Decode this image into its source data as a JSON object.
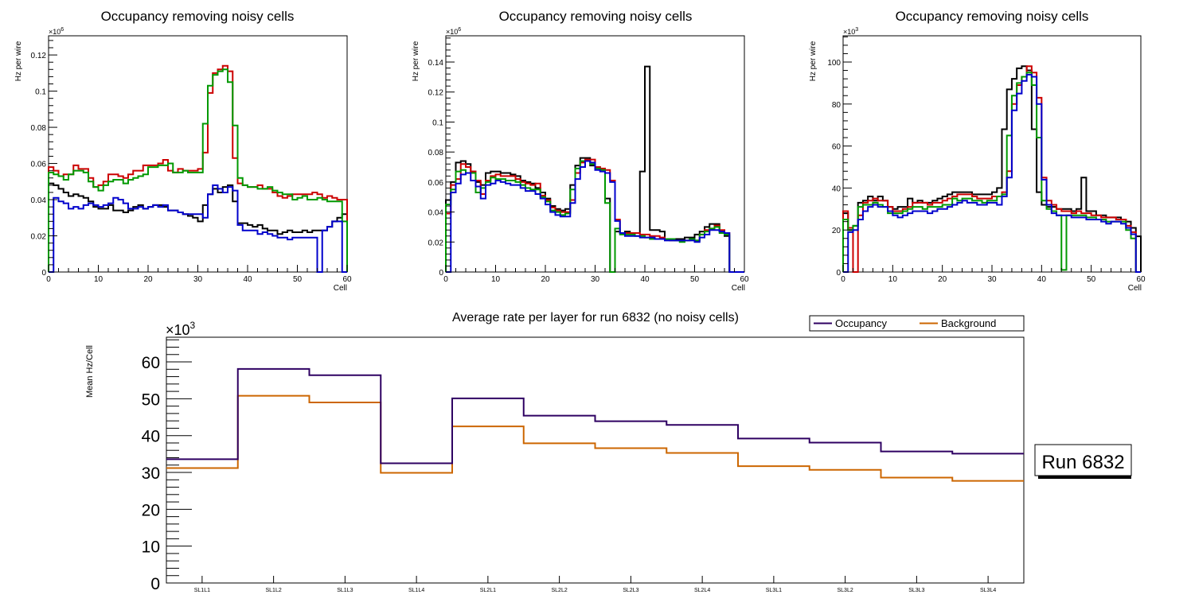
{
  "colors": {
    "black": "#000000",
    "red": "#cc0000",
    "green": "#009900",
    "blue": "#0000cc",
    "occupancy": "#2e0062",
    "background": "#cc6600"
  },
  "chart_data": [
    {
      "type": "line",
      "style": "step-histogram",
      "title": "Occupancy removing noisy cells",
      "xlabel": "Cell",
      "ylabel": "Hz per wire",
      "multiplier_label": "×10",
      "multiplier_exp": "6",
      "xlim": [
        0,
        60
      ],
      "ylim": [
        0,
        0.1306
      ],
      "xticks": [
        "0",
        "10",
        "20",
        "30",
        "40",
        "50",
        "60"
      ],
      "yticks": [
        {
          "v": 0,
          "l": "0"
        },
        {
          "v": 0.02,
          "l": "0.02"
        },
        {
          "v": 0.04,
          "l": "0.04"
        },
        {
          "v": 0.06,
          "l": "0.06"
        },
        {
          "v": 0.08,
          "l": "0.08"
        },
        {
          "v": 0.1,
          "l": "0.1"
        },
        {
          "v": 0.12,
          "l": "0.12"
        }
      ],
      "series": [
        {
          "name": "black",
          "color": "#000000",
          "values": [
            0.049,
            0.048,
            0.046,
            0.044,
            0.042,
            0.043,
            0.042,
            0.041,
            0.039,
            0.036,
            0.035,
            0.035,
            0.037,
            0.034,
            0.034,
            0.033,
            0.034,
            0.036,
            0.037,
            0.035,
            0.036,
            0.037,
            0.037,
            0.036,
            0.034,
            0.034,
            0.033,
            0.032,
            0.031,
            0.03,
            0.028,
            0.037,
            0.043,
            0.046,
            0.044,
            0.047,
            0.048,
            0.039,
            0.027,
            0.027,
            0.026,
            0.025,
            0.026,
            0.024,
            0.023,
            0.023,
            0.021,
            0.022,
            0.023,
            0.022,
            0.022,
            0.023,
            0.022,
            0.023,
            0.023,
            0.023,
            0.025,
            0.028,
            0.03,
            0.032
          ]
        },
        {
          "name": "red",
          "color": "#cc0000",
          "values": [
            0.058,
            0.056,
            0.053,
            0.054,
            0.054,
            0.059,
            0.057,
            0.057,
            0.052,
            0.047,
            0.048,
            0.05,
            0.054,
            0.054,
            0.053,
            0.052,
            0.054,
            0.056,
            0.056,
            0.059,
            0.059,
            0.059,
            0.06,
            0.062,
            0.056,
            0.055,
            0.057,
            0.056,
            0.056,
            0.056,
            0.057,
            0.066,
            0.099,
            0.11,
            0.112,
            0.114,
            0.111,
            0.063,
            0.049,
            0.048,
            0.047,
            0.047,
            0.048,
            0.046,
            0.046,
            0.044,
            0.042,
            0.041,
            0.042,
            0.043,
            0.043,
            0.043,
            0.043,
            0.044,
            0.043,
            0.041,
            0.042,
            0.041,
            0.04,
            0.04
          ]
        },
        {
          "name": "green",
          "color": "#009900",
          "values": [
            0.055,
            0.054,
            0.053,
            0.051,
            0.054,
            0.056,
            0.056,
            0.055,
            0.05,
            0.047,
            0.045,
            0.048,
            0.05,
            0.051,
            0.051,
            0.049,
            0.051,
            0.052,
            0.053,
            0.054,
            0.058,
            0.058,
            0.059,
            0.059,
            0.06,
            0.055,
            0.055,
            0.056,
            0.055,
            0.055,
            0.055,
            0.082,
            0.103,
            0.109,
            0.111,
            0.112,
            0.105,
            0.081,
            0.052,
            0.048,
            0.047,
            0.047,
            0.046,
            0.046,
            0.047,
            0.045,
            0.044,
            0.043,
            0.043,
            0.04,
            0.041,
            0.042,
            0.04,
            0.04,
            0.041,
            0.04,
            0.039,
            0.039,
            0.039,
            0.028
          ]
        },
        {
          "name": "blue",
          "color": "#0000cc",
          "values": [
            0.0,
            0.041,
            0.039,
            0.038,
            0.035,
            0.036,
            0.035,
            0.037,
            0.038,
            0.037,
            0.036,
            0.037,
            0.038,
            0.041,
            0.04,
            0.038,
            0.035,
            0.035,
            0.036,
            0.035,
            0.036,
            0.037,
            0.036,
            0.037,
            0.034,
            0.034,
            0.033,
            0.032,
            0.032,
            0.032,
            0.032,
            0.03,
            0.043,
            0.048,
            0.046,
            0.044,
            0.047,
            0.045,
            0.026,
            0.023,
            0.023,
            0.023,
            0.021,
            0.022,
            0.021,
            0.02,
            0.019,
            0.019,
            0.018,
            0.019,
            0.019,
            0.019,
            0.019,
            0.019,
            0.0,
            0.023,
            0.025,
            0.028,
            0.028,
            0.0
          ]
        }
      ]
    },
    {
      "type": "line",
      "style": "step-histogram",
      "title": "Occupancy removing noisy cells",
      "xlabel": "Cell",
      "ylabel": "Hz per wire",
      "multiplier_label": "×10",
      "multiplier_exp": "6",
      "xlim": [
        0,
        60
      ],
      "ylim": [
        0,
        0.1575
      ],
      "xticks": [
        "0",
        "10",
        "20",
        "30",
        "40",
        "50",
        "60"
      ],
      "yticks": [
        {
          "v": 0,
          "l": "0"
        },
        {
          "v": 0.02,
          "l": "0.02"
        },
        {
          "v": 0.04,
          "l": "0.04"
        },
        {
          "v": 0.06,
          "l": "0.06"
        },
        {
          "v": 0.08,
          "l": "0.08"
        },
        {
          "v": 0.1,
          "l": "0.1"
        },
        {
          "v": 0.12,
          "l": "0.12"
        },
        {
          "v": 0.14,
          "l": "0.14"
        }
      ],
      "series": [
        {
          "name": "black",
          "color": "#000000",
          "values": [
            0.048,
            0.06,
            0.073,
            0.074,
            0.072,
            0.067,
            0.06,
            0.058,
            0.066,
            0.067,
            0.067,
            0.066,
            0.066,
            0.065,
            0.064,
            0.061,
            0.06,
            0.059,
            0.056,
            0.053,
            0.049,
            0.044,
            0.042,
            0.041,
            0.042,
            0.058,
            0.071,
            0.076,
            0.076,
            0.071,
            0.07,
            0.068,
            0.049,
            0.0,
            0.027,
            0.026,
            0.027,
            0.026,
            0.026,
            0.067,
            0.137,
            0.028,
            0.028,
            0.027,
            0.022,
            0.022,
            0.022,
            0.022,
            0.023,
            0.023,
            0.025,
            0.027,
            0.03,
            0.032,
            0.032,
            0.027,
            0.024,
            0.0,
            0.0,
            0.0
          ]
        },
        {
          "name": "red",
          "color": "#cc0000",
          "values": [
            0.039,
            0.058,
            0.062,
            0.072,
            0.07,
            0.067,
            0.061,
            0.052,
            0.061,
            0.064,
            0.065,
            0.064,
            0.064,
            0.064,
            0.062,
            0.06,
            0.059,
            0.058,
            0.059,
            0.051,
            0.048,
            0.043,
            0.041,
            0.04,
            0.04,
            0.048,
            0.066,
            0.073,
            0.075,
            0.075,
            0.07,
            0.069,
            0.068,
            0.061,
            0.035,
            0.026,
            0.026,
            0.026,
            0.026,
            0.025,
            0.025,
            0.024,
            0.024,
            0.023,
            0.022,
            0.021,
            0.021,
            0.021,
            0.021,
            0.022,
            0.021,
            0.025,
            0.028,
            0.029,
            0.031,
            0.028,
            0.026,
            0.0,
            0.0,
            0.0
          ]
        },
        {
          "name": "green",
          "color": "#009900",
          "values": [
            0.045,
            0.055,
            0.067,
            0.068,
            0.066,
            0.066,
            0.053,
            0.056,
            0.06,
            0.063,
            0.062,
            0.062,
            0.061,
            0.061,
            0.06,
            0.058,
            0.056,
            0.055,
            0.055,
            0.05,
            0.047,
            0.041,
            0.04,
            0.038,
            0.039,
            0.055,
            0.069,
            0.074,
            0.074,
            0.072,
            0.069,
            0.068,
            0.046,
            0.0,
            0.029,
            0.025,
            0.025,
            0.025,
            0.024,
            0.024,
            0.023,
            0.022,
            0.022,
            0.022,
            0.022,
            0.022,
            0.021,
            0.02,
            0.021,
            0.022,
            0.021,
            0.025,
            0.027,
            0.029,
            0.03,
            0.026,
            0.025,
            0.0,
            0.0,
            0.0
          ]
        },
        {
          "name": "blue",
          "color": "#0000cc",
          "values": [
            0.0,
            0.053,
            0.059,
            0.065,
            0.066,
            0.061,
            0.057,
            0.049,
            0.058,
            0.059,
            0.061,
            0.06,
            0.059,
            0.058,
            0.058,
            0.056,
            0.054,
            0.054,
            0.052,
            0.049,
            0.045,
            0.04,
            0.038,
            0.037,
            0.037,
            0.046,
            0.062,
            0.07,
            0.074,
            0.073,
            0.068,
            0.067,
            0.066,
            0.06,
            0.034,
            0.026,
            0.024,
            0.024,
            0.024,
            0.023,
            0.023,
            0.023,
            0.022,
            0.022,
            0.021,
            0.021,
            0.021,
            0.021,
            0.021,
            0.021,
            0.02,
            0.023,
            0.025,
            0.028,
            0.028,
            0.027,
            0.026,
            0.0,
            0.0,
            0.0
          ]
        }
      ]
    },
    {
      "type": "line",
      "style": "step-histogram",
      "title": "Occupancy removing noisy cells",
      "xlabel": "Cell",
      "ylabel": "Hz per wire",
      "multiplier_label": "×10",
      "multiplier_exp": "3",
      "xlim": [
        0,
        60
      ],
      "ylim": [
        0,
        112.5
      ],
      "xticks": [
        "0",
        "10",
        "20",
        "30",
        "40",
        "50",
        "60"
      ],
      "yticks": [
        {
          "v": 0,
          "l": "0"
        },
        {
          "v": 20,
          "l": "20"
        },
        {
          "v": 40,
          "l": "40"
        },
        {
          "v": 60,
          "l": "60"
        },
        {
          "v": 80,
          "l": "80"
        },
        {
          "v": 100,
          "l": "100"
        }
      ],
      "series": [
        {
          "name": "black",
          "color": "#000000",
          "values": [
            28,
            20,
            22,
            33,
            34,
            36,
            34,
            36,
            34,
            31,
            30,
            31,
            31,
            35,
            33,
            34,
            33,
            33,
            34,
            35,
            36,
            37,
            38,
            38,
            38,
            38,
            37,
            37,
            37,
            37,
            38,
            40,
            68,
            87,
            92,
            97,
            98,
            96,
            68,
            38,
            32,
            31,
            31,
            30,
            30,
            30,
            29,
            30,
            45,
            29,
            29,
            27,
            27,
            26,
            26,
            26,
            25,
            24,
            21,
            17
          ]
        },
        {
          "name": "red",
          "color": "#cc0000",
          "values": [
            29,
            21,
            0,
            27,
            33,
            34,
            35,
            34,
            34,
            31,
            29,
            29,
            30,
            31,
            33,
            33,
            33,
            32,
            33,
            33,
            34,
            35,
            36,
            37,
            37,
            37,
            36,
            35,
            35,
            35,
            36,
            36,
            38,
            48,
            80,
            89,
            93,
            98,
            95,
            83,
            45,
            34,
            32,
            30,
            29,
            29,
            28,
            29,
            28,
            28,
            27,
            27,
            26,
            26,
            26,
            25,
            25,
            22,
            19,
            0
          ]
        },
        {
          "name": "green",
          "color": "#009900",
          "values": [
            25,
            20,
            22,
            31,
            32,
            32,
            33,
            32,
            31,
            28,
            28,
            28,
            29,
            30,
            31,
            31,
            30,
            31,
            31,
            31,
            32,
            32,
            35,
            34,
            35,
            35,
            34,
            34,
            33,
            34,
            34,
            36,
            37,
            65,
            84,
            90,
            93,
            95,
            89,
            64,
            34,
            30,
            29,
            27,
            1,
            27,
            27,
            27,
            27,
            26,
            26,
            25,
            25,
            24,
            24,
            24,
            24,
            20,
            16,
            0
          ]
        },
        {
          "name": "blue",
          "color": "#0000cc",
          "values": [
            0,
            19,
            20,
            25,
            29,
            31,
            32,
            31,
            31,
            29,
            27,
            26,
            27,
            28,
            29,
            29,
            29,
            28,
            29,
            30,
            30,
            31,
            32,
            33,
            34,
            33,
            33,
            32,
            32,
            33,
            33,
            32,
            36,
            45,
            77,
            85,
            91,
            94,
            93,
            80,
            44,
            32,
            28,
            27,
            27,
            27,
            26,
            26,
            26,
            25,
            25,
            25,
            24,
            23,
            24,
            24,
            23,
            21,
            18,
            0
          ]
        }
      ]
    },
    {
      "type": "line",
      "style": "step-histogram",
      "title": "Average rate per layer for run 6832 (no noisy cells)",
      "xlabel": "",
      "ylabel": "Mean Hz/Cell",
      "multiplier_label": "×10",
      "multiplier_exp": "3",
      "ylim": [
        0,
        66.7
      ],
      "yticks": [
        {
          "v": 0,
          "l": "0"
        },
        {
          "v": 10,
          "l": "10"
        },
        {
          "v": 20,
          "l": "20"
        },
        {
          "v": 30,
          "l": "30"
        },
        {
          "v": 40,
          "l": "40"
        },
        {
          "v": 50,
          "l": "50"
        },
        {
          "v": 60,
          "l": "60"
        }
      ],
      "categories": [
        "SL1L1",
        "SL1L2",
        "SL1L3",
        "SL1L4",
        "SL2L1",
        "SL2L2",
        "SL2L3",
        "SL2L4",
        "SL3L1",
        "SL3L2",
        "SL3L3",
        "SL3L4"
      ],
      "series": [
        {
          "name": "Occupancy",
          "color": "#2e0062",
          "values": [
            33.6,
            58.1,
            56.4,
            32.5,
            50.1,
            45.4,
            43.9,
            42.9,
            39.2,
            38.1,
            35.7,
            35.1
          ]
        },
        {
          "name": "Background",
          "color": "#cc6600",
          "values": [
            31.2,
            50.8,
            49.0,
            29.9,
            42.5,
            37.9,
            36.6,
            35.3,
            31.7,
            30.7,
            28.6,
            27.7
          ]
        }
      ],
      "legend": {
        "placement": "top-right",
        "entries": [
          "Occupancy",
          "Background"
        ]
      },
      "annotation": "Run 6832"
    }
  ]
}
